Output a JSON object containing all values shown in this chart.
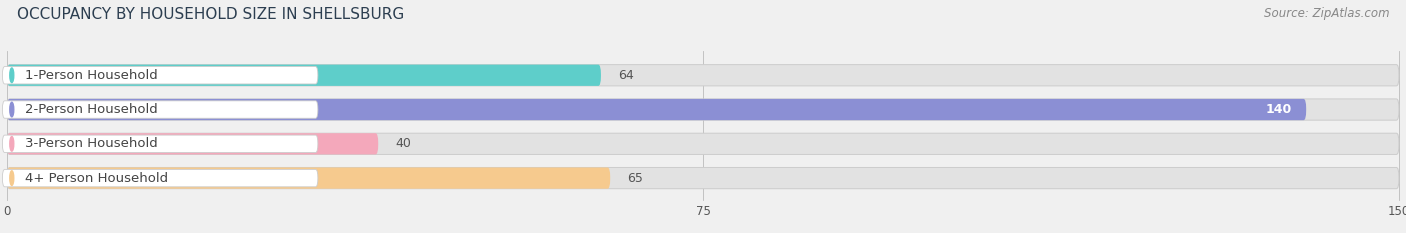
{
  "title": "OCCUPANCY BY HOUSEHOLD SIZE IN SHELLSBURG",
  "source": "Source: ZipAtlas.com",
  "categories": [
    "1-Person Household",
    "2-Person Household",
    "3-Person Household",
    "4+ Person Household"
  ],
  "values": [
    64,
    140,
    40,
    65
  ],
  "bar_colors": [
    "#5ECECA",
    "#8B8FD4",
    "#F4A8BB",
    "#F6CA8E"
  ],
  "xlim": [
    0,
    150
  ],
  "xticks": [
    0,
    75,
    150
  ],
  "background_color": "#f0f0f0",
  "bar_bg_color": "#e2e2e2",
  "title_fontsize": 11,
  "source_fontsize": 8.5,
  "label_fontsize": 9.5,
  "value_fontsize": 9
}
